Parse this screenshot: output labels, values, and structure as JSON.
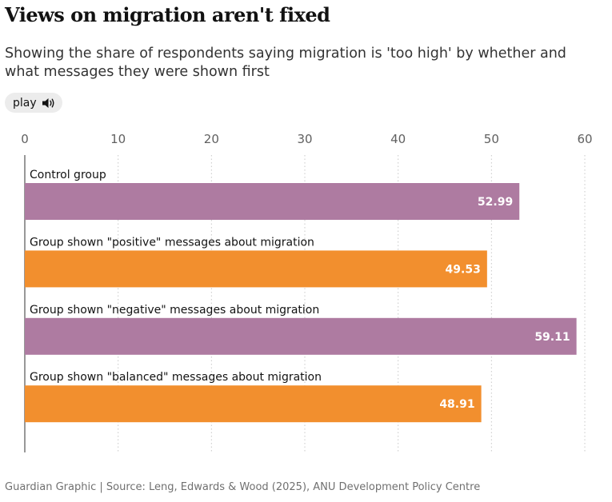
{
  "header": {
    "title": "Views on migration aren't fixed",
    "subtitle": "Showing the share of respondents saying migration is 'too high' by whether and what messages they were shown first",
    "play_label": "play",
    "play_icon": "speaker-icon"
  },
  "footer": {
    "source": "Guardian Graphic | Source: Leng, Edwards & Wood (2025), ANU Development Policy Centre"
  },
  "colors": {
    "purple": "#ae7ba1",
    "orange": "#f28f2e",
    "grid": "#c8c8c8",
    "axis": "#555555",
    "tick_text": "#606060"
  },
  "chart_data": {
    "type": "bar",
    "orientation": "horizontal",
    "categories": [
      "Control group",
      "Group shown \"positive\" messages about migration",
      "Group shown \"negative\" messages about migration",
      "Group shown \"balanced\" messages about migration"
    ],
    "values": [
      52.99,
      49.53,
      59.11,
      48.91
    ],
    "value_labels": [
      "52.99",
      "49.53",
      "59.11",
      "48.91"
    ],
    "bar_colors": [
      "#ae7ba1",
      "#f28f2e",
      "#ae7ba1",
      "#f28f2e"
    ],
    "xlim": [
      0,
      60
    ],
    "ticks": [
      0,
      10,
      20,
      30,
      40,
      50,
      60
    ],
    "tick_labels": [
      "0",
      "10",
      "20",
      "30",
      "40",
      "50",
      "60"
    ],
    "grid": true,
    "axis_position": "top"
  }
}
